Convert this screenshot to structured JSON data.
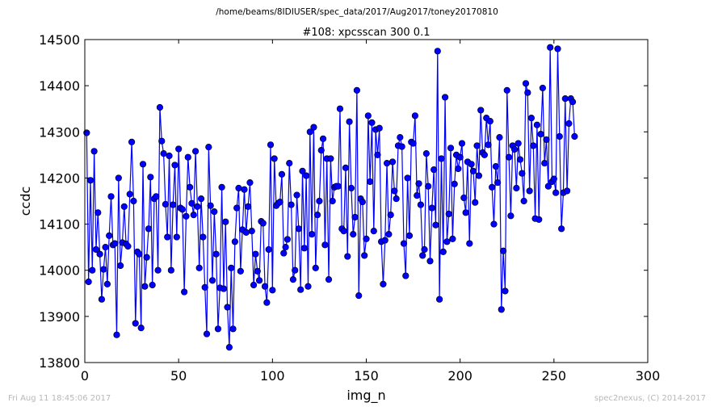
{
  "supertitle": "/home/beams/8IDIUSER/spec_data/2017/Aug2017/toney20170810",
  "footer": {
    "timestamp": "Fri Aug 11 18:45:06 2017",
    "credit": "spec2nexus, (C) 2014-2017"
  },
  "chart_data": {
    "type": "line",
    "title": "#108: xpcsscan 300 0.1",
    "xlabel": "img_n",
    "ylabel": "ccdc",
    "xlim": [
      0,
      300
    ],
    "ylim": [
      13800,
      14500
    ],
    "xticks": [
      0,
      50,
      100,
      150,
      200,
      250,
      300
    ],
    "yticks": [
      13800,
      13900,
      14000,
      14100,
      14200,
      14300,
      14400,
      14500
    ],
    "grid": false,
    "series_color": "#0000ff",
    "marker": "circle",
    "series": [
      {
        "x_start": 1,
        "x_step": 1,
        "values": [
          14298,
          13975,
          14195,
          14000,
          14258,
          14045,
          14125,
          14035,
          13937,
          14002,
          14050,
          13970,
          14075,
          14160,
          14055,
          14058,
          13860,
          14200,
          14010,
          14060,
          14138,
          14057,
          14052,
          14165,
          14278,
          14150,
          13885,
          14040,
          14035,
          13875,
          14230,
          13965,
          14028,
          14090,
          14202,
          13968,
          14155,
          14160,
          14000,
          14353,
          14280,
          14253,
          14143,
          14072,
          14248,
          14000,
          14142,
          14228,
          14072,
          14263,
          14135,
          14132,
          13953,
          14117,
          14245,
          14180,
          14145,
          14120,
          14258,
          14138,
          14005,
          14155,
          14072,
          13963,
          13862,
          14267,
          14140,
          13978,
          14127,
          14035,
          13873,
          13962,
          14180,
          13960,
          14105,
          13920,
          13833,
          14005,
          13873,
          14062,
          14135,
          14178,
          13998,
          14088,
          14175,
          14082,
          14138,
          14190,
          14085,
          13968,
          14035,
          13998,
          13978,
          14106,
          14102,
          13965,
          13930,
          14045,
          14272,
          13957,
          14242,
          14140,
          14145,
          14148,
          14208,
          14037,
          14050,
          14067,
          14232,
          14142,
          13980,
          14000,
          14163,
          14090,
          13958,
          14215,
          14048,
          14205,
          13965,
          14300,
          14078,
          14310,
          14005,
          14120,
          14150,
          14260,
          14285,
          14055,
          14242,
          13980,
          14242,
          14150,
          14180,
          14182,
          14182,
          14350,
          14090,
          14085,
          14222,
          14030,
          14322,
          14178,
          14078,
          14115,
          14390,
          13945,
          14155,
          14148,
          14032,
          14068,
          14335,
          14192,
          14320,
          14085,
          14305,
          14250,
          14308,
          14062,
          13970,
          14065,
          14232,
          14078,
          14120,
          14235,
          14172,
          14155,
          14270,
          14288,
          14268,
          14058,
          13988,
          14200,
          14075,
          14278,
          14275,
          14335,
          14162,
          14188,
          14142,
          14032,
          14045,
          14253,
          14182,
          14020,
          14135,
          14218,
          14098,
          14475,
          13937,
          14242,
          14040,
          14375,
          14062,
          14122,
          14265,
          14068,
          14187,
          14250,
          14220,
          14245,
          14275,
          14157,
          14125,
          14235,
          14058,
          14230,
          14215,
          14147,
          14270,
          14205,
          14347,
          14255,
          14250,
          14330,
          14272,
          14323,
          14180,
          14100,
          14225,
          14190,
          14288,
          13915,
          14042,
          13955,
          14390,
          14245,
          14118,
          14270,
          14262,
          14178,
          14275,
          14240,
          14210,
          14150,
          14405,
          14385,
          14172,
          14330,
          14270,
          14112,
          14315,
          14110,
          14295,
          14395,
          14232,
          14283,
          14182,
          14483,
          14192,
          14198,
          14168,
          14480,
          14290,
          14090,
          14168,
          14372,
          14172,
          14318,
          14372,
          14365,
          14290
        ]
      }
    ]
  }
}
